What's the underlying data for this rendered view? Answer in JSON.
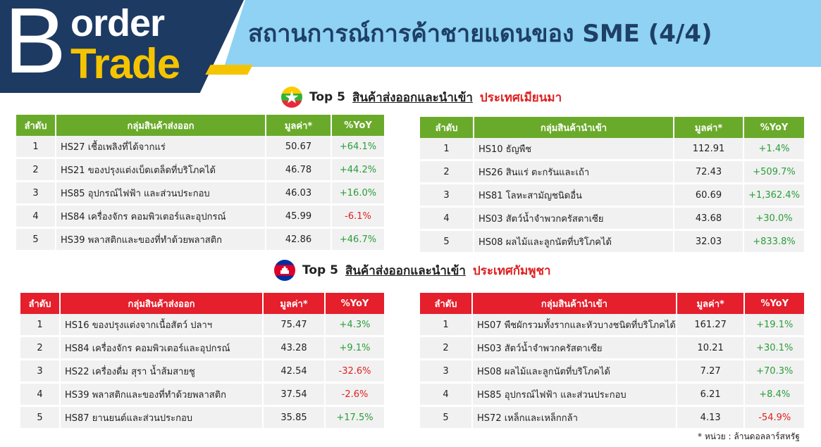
{
  "logo": {
    "letter": "B",
    "line1": "order",
    "line2": "Trade"
  },
  "header_title": "สถานการณ์การค้าชายแดนของ SME (4/4)",
  "colors": {
    "green": "#6aaa2a",
    "red": "#e51f2c",
    "navy": "#1d3a62",
    "yellow": "#f5c400",
    "light_blue": "#8fd2f3"
  },
  "myanmar": {
    "title_prefix": "Top 5",
    "title_main": "สินค้าส่งออกและนำเข้า",
    "country": "ประเทศเมียนมา",
    "flag_icon": "myanmar-flag-icon",
    "export": {
      "headers": [
        "ลำดับ",
        "กลุ่มสินค้าส่งออก",
        "มูลค่า*",
        "%YoY"
      ],
      "rows": [
        {
          "rank": "1",
          "name": "HS27 เชื้อเพลิงที่ได้จากแร่",
          "value": "50.67",
          "yoy": "+64.1%"
        },
        {
          "rank": "2",
          "name": "HS21 ของปรุงแต่งเบ็ดเตล็ดที่บริโภคได้",
          "value": "46.78",
          "yoy": "+44.2%"
        },
        {
          "rank": "3",
          "name": "HS85 อุปกรณ์ไฟฟ้า และส่วนประกอบ",
          "value": "46.03",
          "yoy": "+16.0%"
        },
        {
          "rank": "4",
          "name": "HS84 เครื่องจักร คอมพิวเตอร์และอุปกรณ์",
          "value": "45.99",
          "yoy": "-6.1%"
        },
        {
          "rank": "5",
          "name": "HS39 พลาสติกและของที่ทำด้วยพลาสติก",
          "value": "42.86",
          "yoy": "+46.7%"
        }
      ]
    },
    "import": {
      "headers": [
        "ลำดับ",
        "กลุ่มสินค้านำเข้า",
        "มูลค่า*",
        "%YoY"
      ],
      "rows": [
        {
          "rank": "1",
          "name": "HS10 ธัญพืช",
          "value": "112.91",
          "yoy": "+1.4%"
        },
        {
          "rank": "2",
          "name": "HS26 สินแร่ ตะกรันและเถ้า",
          "value": "72.43",
          "yoy": "+509.7%"
        },
        {
          "rank": "3",
          "name": "HS81 โลหะสามัญชนิดอื่น",
          "value": "60.69",
          "yoy": "+1,362.4%"
        },
        {
          "rank": "4",
          "name": "HS03 สัตว์น้ำจำพวกครัสตาเซีย",
          "value": "43.68",
          "yoy": "+30.0%"
        },
        {
          "rank": "5",
          "name": "HS08 ผลไม้และลูกนัตที่บริโภคได้",
          "value": "32.03",
          "yoy": "+833.8%"
        }
      ]
    }
  },
  "cambodia": {
    "title_prefix": "Top 5",
    "title_main": "สินค้าส่งออกและนำเข้า",
    "country": "ประเทศกัมพูชา",
    "flag_icon": "cambodia-flag-icon",
    "export": {
      "headers": [
        "ลำดับ",
        "กลุ่มสินค้าส่งออก",
        "มูลค่า*",
        "%YoY"
      ],
      "rows": [
        {
          "rank": "1",
          "name": "HS16 ของปรุงแต่งจากเนื้อสัตว์ ปลาฯ",
          "value": "75.47",
          "yoy": "+4.3%"
        },
        {
          "rank": "2",
          "name": "HS84 เครื่องจักร คอมพิวเตอร์และอุปกรณ์",
          "value": "43.28",
          "yoy": "+9.1%"
        },
        {
          "rank": "3",
          "name": "HS22 เครื่องดื่ม สุรา น้ำส้มสายชู",
          "value": "42.54",
          "yoy": "-32.6%"
        },
        {
          "rank": "4",
          "name": "HS39 พลาสติกและของที่ทำด้วยพลาสติก",
          "value": "37.54",
          "yoy": "-2.6%"
        },
        {
          "rank": "5",
          "name": "HS87 ยานยนต์และส่วนประกอบ",
          "value": "35.85",
          "yoy": "+17.5%"
        }
      ]
    },
    "import": {
      "headers": [
        "ลำดับ",
        "กลุ่มสินค้านำเข้า",
        "มูลค่า*",
        "%YoY"
      ],
      "rows": [
        {
          "rank": "1",
          "name": "HS07 พืชผักรวมทั้งรากและหัวบางชนิดที่บริโภคได้",
          "value": "161.27",
          "yoy": "+19.1%"
        },
        {
          "rank": "2",
          "name": "HS03 สัตว์น้ำจำพวกครัสตาเซีย",
          "value": "10.21",
          "yoy": "+30.1%"
        },
        {
          "rank": "3",
          "name": "HS08 ผลไม้และลูกนัตที่บริโภคได้",
          "value": "7.27",
          "yoy": "+70.3%"
        },
        {
          "rank": "4",
          "name": "HS85 อุปกรณ์ไฟฟ้า และส่วนประกอบ",
          "value": "6.21",
          "yoy": "+8.4%"
        },
        {
          "rank": "5",
          "name": "HS72 เหล็กและเหล็กกล้า",
          "value": "4.13",
          "yoy": "-54.9%"
        }
      ]
    }
  },
  "footnote": "* หน่วย : ล้านดอลลาร์สหรัฐ"
}
